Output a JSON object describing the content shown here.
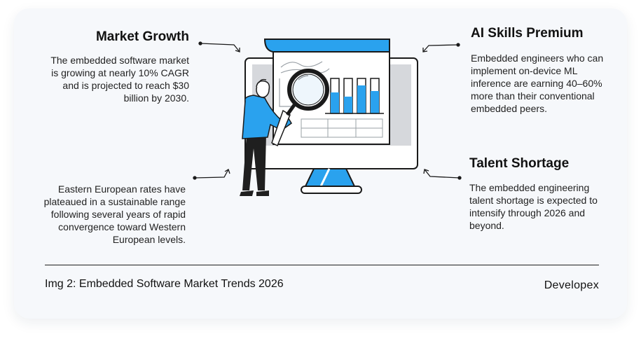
{
  "market_growth": {
    "title": "Market Growth",
    "text": "The embedded software market is growing at nearly 10% CAGR and is projected to reach $30 billion by 2030."
  },
  "ai_skills": {
    "title": "AI Skills Premium",
    "text": "Embedded engineers who can implement on-device ML inference are earning 40–60% more than their conventional embedded peers."
  },
  "talent_shortage": {
    "title": "Talent Shortage",
    "text": "The embedded engineering talent shortage is expected to intensify through 2026 and beyond."
  },
  "eastern_europe": {
    "text": "Eastern European rates have plateaued in a sustainable range following several years of rapid convergence toward Western European levels."
  },
  "footer": {
    "caption": "Img 2: Embedded Software Market Trends 2026",
    "brand": "Developex"
  },
  "colors": {
    "accent": "#2aa2ee",
    "card_bg": "#f6f8fb",
    "ink": "#1a1a1a"
  },
  "icons": [
    "monitor-illustration",
    "magnifier-icon",
    "person-illustration",
    "bar-chart-icon",
    "arrow-icon"
  ]
}
